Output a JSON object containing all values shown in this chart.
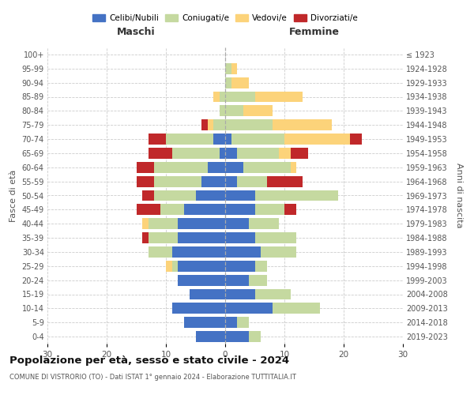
{
  "age_groups": [
    "0-4",
    "5-9",
    "10-14",
    "15-19",
    "20-24",
    "25-29",
    "30-34",
    "35-39",
    "40-44",
    "45-49",
    "50-54",
    "55-59",
    "60-64",
    "65-69",
    "70-74",
    "75-79",
    "80-84",
    "85-89",
    "90-94",
    "95-99",
    "100+"
  ],
  "birth_years": [
    "2019-2023",
    "2014-2018",
    "2009-2013",
    "2004-2008",
    "1999-2003",
    "1994-1998",
    "1989-1993",
    "1984-1988",
    "1979-1983",
    "1974-1978",
    "1969-1973",
    "1964-1968",
    "1959-1963",
    "1954-1958",
    "1949-1953",
    "1944-1948",
    "1939-1943",
    "1934-1938",
    "1929-1933",
    "1924-1928",
    "≤ 1923"
  ],
  "male": {
    "celibi": [
      5,
      7,
      9,
      6,
      8,
      8,
      9,
      8,
      8,
      7,
      5,
      4,
      3,
      1,
      2,
      0,
      0,
      0,
      0,
      0,
      0
    ],
    "coniugati": [
      0,
      0,
      0,
      0,
      0,
      1,
      4,
      5,
      5,
      4,
      7,
      8,
      9,
      8,
      8,
      2,
      1,
      1,
      0,
      0,
      0
    ],
    "vedovi": [
      0,
      0,
      0,
      0,
      0,
      1,
      0,
      0,
      1,
      0,
      0,
      0,
      0,
      0,
      0,
      1,
      0,
      1,
      0,
      0,
      0
    ],
    "divorziati": [
      0,
      0,
      0,
      0,
      0,
      0,
      0,
      1,
      0,
      4,
      2,
      3,
      3,
      4,
      3,
      1,
      0,
      0,
      0,
      0,
      0
    ]
  },
  "female": {
    "nubili": [
      4,
      2,
      8,
      5,
      4,
      5,
      6,
      5,
      4,
      5,
      5,
      2,
      3,
      2,
      1,
      0,
      0,
      0,
      0,
      0,
      0
    ],
    "coniugate": [
      2,
      2,
      8,
      6,
      3,
      2,
      6,
      7,
      5,
      5,
      14,
      5,
      8,
      7,
      9,
      8,
      3,
      5,
      1,
      1,
      0
    ],
    "vedove": [
      0,
      0,
      0,
      0,
      0,
      0,
      0,
      0,
      0,
      0,
      0,
      0,
      1,
      2,
      11,
      10,
      5,
      8,
      3,
      1,
      0
    ],
    "divorziate": [
      0,
      0,
      0,
      0,
      0,
      0,
      0,
      0,
      0,
      2,
      0,
      6,
      0,
      3,
      2,
      0,
      0,
      0,
      0,
      0,
      0
    ]
  },
  "colors": {
    "celibi_nubili": "#4472c4",
    "coniugati": "#c5d9a0",
    "vedovi": "#fcd37a",
    "divorziati": "#c0282a"
  },
  "title": "Popolazione per età, sesso e stato civile - 2024",
  "subtitle": "COMUNE DI VISTRORIO (TO) - Dati ISTAT 1° gennaio 2024 - Elaborazione TUTTITALIA.IT",
  "xlabel_left": "Maschi",
  "xlabel_right": "Femmine",
  "ylabel_left": "Fasce di età",
  "ylabel_right": "Anni di nascita",
  "xlim": 30,
  "bg_color": "#ffffff",
  "grid_color": "#cccccc"
}
